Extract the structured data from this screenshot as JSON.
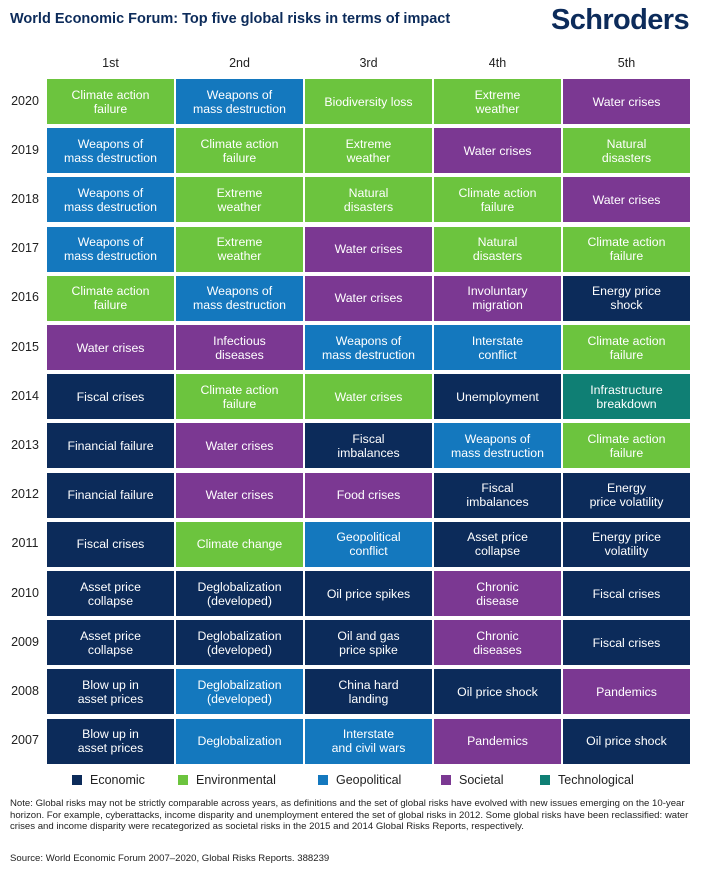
{
  "header": {
    "title": "World Economic Forum: Top five global risks in terms of impact",
    "logo_text": "Schroders"
  },
  "colors": {
    "Economic": "#0c2b5a",
    "Environmental": "#6cc43e",
    "Geopolitical": "#1478be",
    "Societal": "#7b3892",
    "Technological": "#0f7f74"
  },
  "chart_data": {
    "type": "table",
    "title": "World Economic Forum: Top five global risks in terms of impact",
    "columns": [
      "1st",
      "2nd",
      "3rd",
      "4th",
      "5th"
    ],
    "rows": [
      {
        "year": "2020",
        "cells": [
          {
            "label": "Climate action failure",
            "lines": [
              "Climate action",
              "failure"
            ],
            "category": "Environmental"
          },
          {
            "label": "Weapons of mass destruction",
            "lines": [
              "Weapons of",
              "mass destruction"
            ],
            "category": "Geopolitical"
          },
          {
            "label": "Biodiversity loss",
            "lines": [
              "Biodiversity loss"
            ],
            "category": "Environmental"
          },
          {
            "label": "Extreme weather",
            "lines": [
              "Extreme",
              "weather"
            ],
            "category": "Environmental"
          },
          {
            "label": "Water crises",
            "lines": [
              "Water crises"
            ],
            "category": "Societal"
          }
        ]
      },
      {
        "year": "2019",
        "cells": [
          {
            "label": "Weapons of mass destruction",
            "lines": [
              "Weapons of",
              "mass destruction"
            ],
            "category": "Geopolitical"
          },
          {
            "label": "Climate action failure",
            "lines": [
              "Climate action",
              "failure"
            ],
            "category": "Environmental"
          },
          {
            "label": "Extreme weather",
            "lines": [
              "Extreme",
              "weather"
            ],
            "category": "Environmental"
          },
          {
            "label": "Water crises",
            "lines": [
              "Water crises"
            ],
            "category": "Societal"
          },
          {
            "label": "Natural disasters",
            "lines": [
              "Natural",
              "disasters"
            ],
            "category": "Environmental"
          }
        ]
      },
      {
        "year": "2018",
        "cells": [
          {
            "label": "Weapons of mass destruction",
            "lines": [
              "Weapons of",
              "mass destruction"
            ],
            "category": "Geopolitical"
          },
          {
            "label": "Extreme weather",
            "lines": [
              "Extreme",
              "weather"
            ],
            "category": "Environmental"
          },
          {
            "label": "Natural disasters",
            "lines": [
              "Natural",
              "disasters"
            ],
            "category": "Environmental"
          },
          {
            "label": "Climate action failure",
            "lines": [
              "Climate action",
              "failure"
            ],
            "category": "Environmental"
          },
          {
            "label": "Water crises",
            "lines": [
              "Water crises"
            ],
            "category": "Societal"
          }
        ]
      },
      {
        "year": "2017",
        "cells": [
          {
            "label": "Weapons of mass destruction",
            "lines": [
              "Weapons of",
              "mass destruction"
            ],
            "category": "Geopolitical"
          },
          {
            "label": "Extreme weather",
            "lines": [
              "Extreme",
              "weather"
            ],
            "category": "Environmental"
          },
          {
            "label": "Water crises",
            "lines": [
              "Water crises"
            ],
            "category": "Societal"
          },
          {
            "label": "Natural disasters",
            "lines": [
              "Natural",
              "disasters"
            ],
            "category": "Environmental"
          },
          {
            "label": "Climate action failure",
            "lines": [
              "Climate action",
              "failure"
            ],
            "category": "Environmental"
          }
        ]
      },
      {
        "year": "2016",
        "cells": [
          {
            "label": "Climate action failure",
            "lines": [
              "Climate action",
              "failure"
            ],
            "category": "Environmental"
          },
          {
            "label": "Weapons of mass destruction",
            "lines": [
              "Weapons of",
              "mass destruction"
            ],
            "category": "Geopolitical"
          },
          {
            "label": "Water crises",
            "lines": [
              "Water crises"
            ],
            "category": "Societal"
          },
          {
            "label": "Involuntary migration",
            "lines": [
              "Involuntary",
              "migration"
            ],
            "category": "Societal"
          },
          {
            "label": "Energy price shock",
            "lines": [
              "Energy price",
              "shock"
            ],
            "category": "Economic"
          }
        ]
      },
      {
        "year": "2015",
        "cells": [
          {
            "label": "Water crises",
            "lines": [
              "Water crises"
            ],
            "category": "Societal"
          },
          {
            "label": "Infectious diseases",
            "lines": [
              "Infectious",
              "diseases"
            ],
            "category": "Societal"
          },
          {
            "label": "Weapons of mass destruction",
            "lines": [
              "Weapons of",
              "mass destruction"
            ],
            "category": "Geopolitical"
          },
          {
            "label": "Interstate conflict",
            "lines": [
              "Interstate",
              "conflict"
            ],
            "category": "Geopolitical"
          },
          {
            "label": "Climate action failure",
            "lines": [
              "Climate action",
              "failure"
            ],
            "category": "Environmental"
          }
        ]
      },
      {
        "year": "2014",
        "cells": [
          {
            "label": "Fiscal crises",
            "lines": [
              "Fiscal crises"
            ],
            "category": "Economic"
          },
          {
            "label": "Climate action failure",
            "lines": [
              "Climate action",
              "failure"
            ],
            "category": "Environmental"
          },
          {
            "label": "Water crises",
            "lines": [
              "Water crises"
            ],
            "category": "Environmental"
          },
          {
            "label": "Unemployment",
            "lines": [
              "Unemployment"
            ],
            "category": "Economic"
          },
          {
            "label": "Infrastructure breakdown",
            "lines": [
              "Infrastructure",
              "breakdown"
            ],
            "category": "Technological"
          }
        ]
      },
      {
        "year": "2013",
        "cells": [
          {
            "label": "Financial failure",
            "lines": [
              "Financial failure"
            ],
            "category": "Economic"
          },
          {
            "label": "Water crises",
            "lines": [
              "Water crises"
            ],
            "category": "Societal"
          },
          {
            "label": "Fiscal imbalances",
            "lines": [
              "Fiscal",
              "imbalances"
            ],
            "category": "Economic"
          },
          {
            "label": "Weapons of mass destruction",
            "lines": [
              "Weapons of",
              "mass destruction"
            ],
            "category": "Geopolitical"
          },
          {
            "label": "Climate action failure",
            "lines": [
              "Climate action",
              "failure"
            ],
            "category": "Environmental"
          }
        ]
      },
      {
        "year": "2012",
        "cells": [
          {
            "label": "Financial failure",
            "lines": [
              "Financial failure"
            ],
            "category": "Economic"
          },
          {
            "label": "Water crises",
            "lines": [
              "Water crises"
            ],
            "category": "Societal"
          },
          {
            "label": "Food crises",
            "lines": [
              "Food crises"
            ],
            "category": "Societal"
          },
          {
            "label": "Fiscal imbalances",
            "lines": [
              "Fiscal",
              "imbalances"
            ],
            "category": "Economic"
          },
          {
            "label": "Energy price volatility",
            "lines": [
              "Energy",
              "price volatility"
            ],
            "category": "Economic"
          }
        ]
      },
      {
        "year": "2011",
        "cells": [
          {
            "label": "Fiscal crises",
            "lines": [
              "Fiscal crises"
            ],
            "category": "Economic"
          },
          {
            "label": "Climate change",
            "lines": [
              "Climate change"
            ],
            "category": "Environmental"
          },
          {
            "label": "Geopolitical conflict",
            "lines": [
              "Geopolitical",
              "conflict"
            ],
            "category": "Geopolitical"
          },
          {
            "label": "Asset price collapse",
            "lines": [
              "Asset price",
              "collapse"
            ],
            "category": "Economic"
          },
          {
            "label": "Energy price volatility",
            "lines": [
              "Energy price",
              "volatility"
            ],
            "category": "Economic"
          }
        ]
      },
      {
        "year": "2010",
        "cells": [
          {
            "label": "Asset price collapse",
            "lines": [
              "Asset price",
              "collapse"
            ],
            "category": "Economic"
          },
          {
            "label": "Deglobalization (developed)",
            "lines": [
              "Deglobalization",
              "(developed)"
            ],
            "category": "Economic"
          },
          {
            "label": "Oil price spikes",
            "lines": [
              "Oil price spikes"
            ],
            "category": "Economic"
          },
          {
            "label": "Chronic disease",
            "lines": [
              "Chronic",
              "disease"
            ],
            "category": "Societal"
          },
          {
            "label": "Fiscal crises",
            "lines": [
              "Fiscal crises"
            ],
            "category": "Economic"
          }
        ]
      },
      {
        "year": "2009",
        "cells": [
          {
            "label": "Asset price collapse",
            "lines": [
              "Asset price",
              "collapse"
            ],
            "category": "Economic"
          },
          {
            "label": "Deglobalization (developed)",
            "lines": [
              "Deglobalization",
              "(developed)"
            ],
            "category": "Economic"
          },
          {
            "label": "Oil and gas price spike",
            "lines": [
              "Oil and gas",
              "price spike"
            ],
            "category": "Economic"
          },
          {
            "label": "Chronic diseases",
            "lines": [
              "Chronic",
              "diseases"
            ],
            "category": "Societal"
          },
          {
            "label": "Fiscal crises",
            "lines": [
              "Fiscal crises"
            ],
            "category": "Economic"
          }
        ]
      },
      {
        "year": "2008",
        "cells": [
          {
            "label": "Blow up in asset prices",
            "lines": [
              "Blow up in",
              "asset prices"
            ],
            "category": "Economic"
          },
          {
            "label": "Deglobalization (developed)",
            "lines": [
              "Deglobalization",
              "(developed)"
            ],
            "category": "Geopolitical"
          },
          {
            "label": "China hard landing",
            "lines": [
              "China hard",
              "landing"
            ],
            "category": "Economic"
          },
          {
            "label": "Oil price shock",
            "lines": [
              "Oil price shock"
            ],
            "category": "Economic"
          },
          {
            "label": "Pandemics",
            "lines": [
              "Pandemics"
            ],
            "category": "Societal"
          }
        ]
      },
      {
        "year": "2007",
        "cells": [
          {
            "label": "Blow up in asset prices",
            "lines": [
              "Blow up in",
              "asset prices"
            ],
            "category": "Economic"
          },
          {
            "label": "Deglobalization",
            "lines": [
              "Deglobalization"
            ],
            "category": "Geopolitical"
          },
          {
            "label": "Interstate and civil wars",
            "lines": [
              "Interstate",
              "and civil wars"
            ],
            "category": "Geopolitical"
          },
          {
            "label": "Pandemics",
            "lines": [
              "Pandemics"
            ],
            "category": "Societal"
          },
          {
            "label": "Oil price shock",
            "lines": [
              "Oil price shock"
            ],
            "category": "Economic"
          }
        ]
      }
    ],
    "legend": [
      "Economic",
      "Environmental",
      "Geopolitical",
      "Societal",
      "Technological"
    ],
    "legend_placement": "bottom"
  },
  "footer": {
    "note": "Note: Global risks may not be strictly comparable across years, as definitions and the set of global risks have evolved with new issues emerging on the 10-year horizon. For example, cyberattacks, income disparity and unemployment entered the set of global risks in 2012. Some global risks have been reclassified: water crises and income disparity were recategorized as societal risks in the 2015 and 2014 Global Risks Reports, respectively.",
    "source": "Source: World Economic Forum 2007–2020, Global Risks Reports. 388239"
  }
}
